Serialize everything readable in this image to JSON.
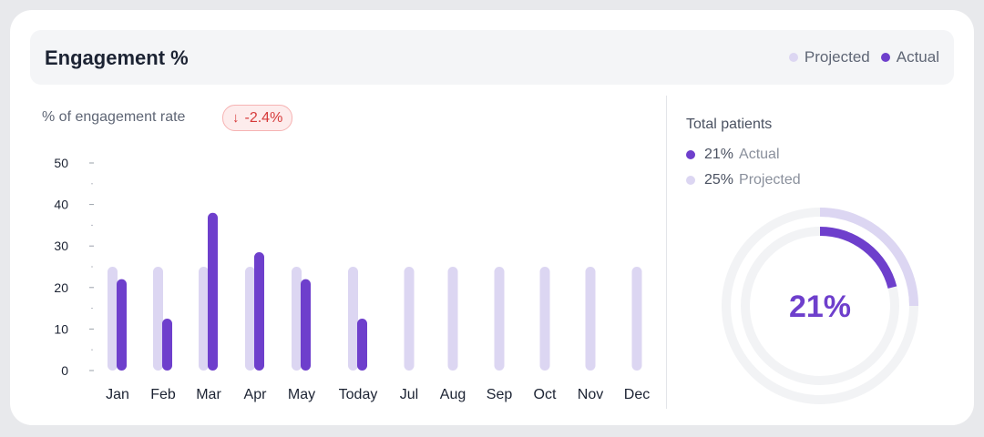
{
  "header": {
    "title": "Engagement %",
    "legend": [
      {
        "label": "Projected",
        "color": "#dcd6f2"
      },
      {
        "label": "Actual",
        "color": "#6e3fcc"
      }
    ]
  },
  "subtitle": "% of engagement rate",
  "badge": {
    "icon": "arrow-down-icon",
    "value": "-2.4%"
  },
  "chart_data": {
    "type": "bar",
    "categories": [
      "Jan",
      "Feb",
      "Mar",
      "Apr",
      "May",
      "Today",
      "Jul",
      "Aug",
      "Sep",
      "Oct",
      "Nov",
      "Dec"
    ],
    "series": [
      {
        "name": "Projected",
        "color": "#dcd6f2",
        "values": [
          25,
          25,
          25,
          25,
          25,
          25,
          25,
          25,
          25,
          25,
          25,
          25
        ]
      },
      {
        "name": "Actual",
        "color": "#6e3fcc",
        "values": [
          22,
          12.5,
          38,
          28.5,
          22,
          12.5,
          null,
          null,
          null,
          null,
          null,
          null
        ]
      }
    ],
    "yticks": [
      0,
      10,
      20,
      30,
      40,
      50
    ],
    "ylim": [
      0,
      50
    ],
    "grid": false
  },
  "total_patients": {
    "title": "Total patients",
    "actual": {
      "value": "21%",
      "label": "Actual",
      "color": "#6e3fcc",
      "percent": 21
    },
    "projected": {
      "value": "25%",
      "label": "Projected",
      "color": "#dcd6f2",
      "percent": 25
    },
    "center_label": "21%"
  }
}
